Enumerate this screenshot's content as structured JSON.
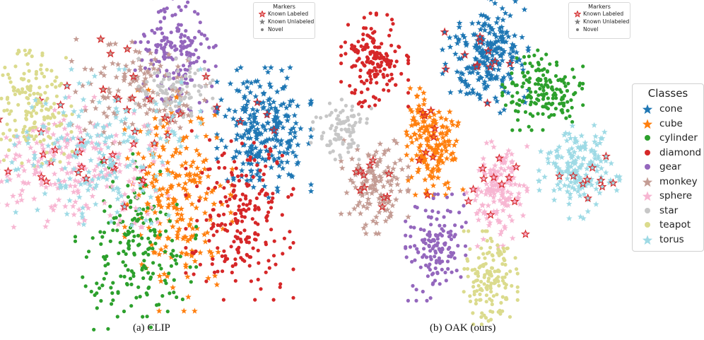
{
  "captions": {
    "left": "(a) CLIP",
    "right": "(b) OAK (ours)"
  },
  "markers_legend": {
    "title": "Markers",
    "items": [
      {
        "label": "Known Labeled",
        "marker": "star-outline",
        "color": "#d62728"
      },
      {
        "label": "Known Unlabeled",
        "marker": "star",
        "color": "#7f7f7f"
      },
      {
        "label": "Novel",
        "marker": "dot",
        "color": "#7f7f7f"
      }
    ]
  },
  "classes_legend": {
    "title": "Classes",
    "items": [
      {
        "label": "cone",
        "color": "#1f77b4",
        "marker": "star"
      },
      {
        "label": "cube",
        "color": "#ff7f0e",
        "marker": "star"
      },
      {
        "label": "cylinder",
        "color": "#2ca02c",
        "marker": "dot"
      },
      {
        "label": "diamond",
        "color": "#d62728",
        "marker": "dot"
      },
      {
        "label": "gear",
        "color": "#9467bd",
        "marker": "dot"
      },
      {
        "label": "monkey",
        "color": "#c49c94",
        "marker": "star"
      },
      {
        "label": "sphere",
        "color": "#f7b6d2",
        "marker": "star"
      },
      {
        "label": "star",
        "color": "#c7c7c7",
        "marker": "dot"
      },
      {
        "label": "teapot",
        "color": "#dbdb8d",
        "marker": "dot"
      },
      {
        "label": "torus",
        "color": "#9edae5",
        "marker": "star"
      }
    ]
  },
  "chart_data": [
    {
      "type": "scatter",
      "caption": "(a) CLIP",
      "axes": "none",
      "clusters": [
        {
          "class": "cone",
          "center": [
            0.86,
            0.42
          ],
          "spread": [
            0.07,
            0.1
          ],
          "n": 260,
          "known_labeled": 5
        },
        {
          "class": "cube",
          "center": [
            0.58,
            0.65
          ],
          "spread": [
            0.08,
            0.17
          ],
          "n": 230,
          "known_labeled": 0
        },
        {
          "class": "cylinder",
          "center": [
            0.44,
            0.8
          ],
          "spread": [
            0.09,
            0.14
          ],
          "n": 200,
          "known_labeled": 0
        },
        {
          "class": "diamond",
          "center": [
            0.78,
            0.7
          ],
          "spread": [
            0.08,
            0.13
          ],
          "n": 230,
          "known_labeled": 0
        },
        {
          "class": "gear",
          "center": [
            0.57,
            0.15
          ],
          "spread": [
            0.06,
            0.09
          ],
          "n": 180,
          "known_labeled": 0
        },
        {
          "class": "monkey",
          "center": [
            0.45,
            0.28
          ],
          "spread": [
            0.1,
            0.08
          ],
          "n": 140,
          "known_labeled": 14
        },
        {
          "class": "sphere",
          "center": [
            0.24,
            0.52
          ],
          "spread": [
            0.14,
            0.1
          ],
          "n": 240,
          "known_labeled": 20
        },
        {
          "class": "star",
          "center": [
            0.56,
            0.28
          ],
          "spread": [
            0.06,
            0.05
          ],
          "n": 90,
          "known_labeled": 0
        },
        {
          "class": "teapot",
          "center": [
            0.1,
            0.34
          ],
          "spread": [
            0.06,
            0.09
          ],
          "n": 170,
          "known_labeled": 0
        },
        {
          "class": "torus",
          "center": [
            0.3,
            0.47
          ],
          "spread": [
            0.16,
            0.12
          ],
          "n": 200,
          "known_labeled": 12
        }
      ]
    },
    {
      "type": "scatter",
      "caption": "(b) OAK (ours)",
      "axes": "none",
      "clusters": [
        {
          "class": "cone",
          "center": [
            0.55,
            0.15
          ],
          "spread": [
            0.065,
            0.09
          ],
          "n": 240,
          "known_labeled": 12
        },
        {
          "class": "cube",
          "center": [
            0.38,
            0.44
          ],
          "spread": [
            0.045,
            0.08
          ],
          "n": 170,
          "known_labeled": 10
        },
        {
          "class": "cylinder",
          "center": [
            0.74,
            0.27
          ],
          "spread": [
            0.06,
            0.06
          ],
          "n": 170,
          "known_labeled": 0
        },
        {
          "class": "diamond",
          "center": [
            0.19,
            0.17
          ],
          "spread": [
            0.05,
            0.07
          ],
          "n": 170,
          "known_labeled": 0
        },
        {
          "class": "gear",
          "center": [
            0.39,
            0.79
          ],
          "spread": [
            0.045,
            0.08
          ],
          "n": 150,
          "known_labeled": 0
        },
        {
          "class": "monkey",
          "center": [
            0.19,
            0.59
          ],
          "spread": [
            0.05,
            0.07
          ],
          "n": 140,
          "known_labeled": 12
        },
        {
          "class": "sphere",
          "center": [
            0.59,
            0.61
          ],
          "spread": [
            0.045,
            0.08
          ],
          "n": 160,
          "known_labeled": 12
        },
        {
          "class": "star",
          "center": [
            0.08,
            0.4
          ],
          "spread": [
            0.045,
            0.045
          ],
          "n": 90,
          "known_labeled": 0
        },
        {
          "class": "teapot",
          "center": [
            0.57,
            0.89
          ],
          "spread": [
            0.04,
            0.07
          ],
          "n": 150,
          "known_labeled": 0
        },
        {
          "class": "torus",
          "center": [
            0.86,
            0.54
          ],
          "spread": [
            0.06,
            0.07
          ],
          "n": 170,
          "known_labeled": 10
        }
      ]
    }
  ]
}
